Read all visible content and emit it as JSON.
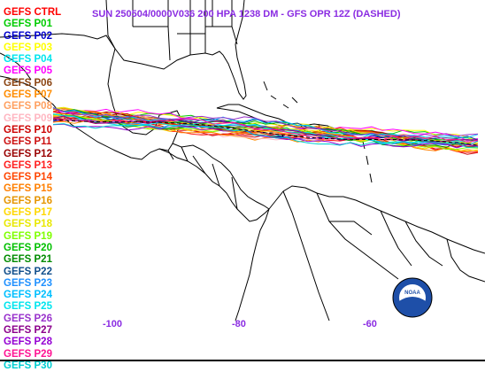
{
  "title": "SUN 250504/0000V036  200 HPA 1238 DM - GFS OPR 12Z (DASHED)",
  "legend": [
    {
      "label": "GEFS CTRL",
      "color": "#ff0000"
    },
    {
      "label": "GEFS P01",
      "color": "#00cc00"
    },
    {
      "label": "GEFS P02",
      "color": "#0000cc"
    },
    {
      "label": "GEFS P03",
      "color": "#ffff00"
    },
    {
      "label": "GEFS P04",
      "color": "#00e5ee"
    },
    {
      "label": "GEFS P05",
      "color": "#ff00ff"
    },
    {
      "label": "GEFS P06",
      "color": "#8b4513"
    },
    {
      "label": "GEFS P07",
      "color": "#ff8c00"
    },
    {
      "label": "GEFS P08",
      "color": "#ffa060"
    },
    {
      "label": "GEFS P09",
      "color": "#ffb6c1"
    },
    {
      "label": "GEFS P10",
      "color": "#cc0000"
    },
    {
      "label": "GEFS P11",
      "color": "#cc1010"
    },
    {
      "label": "GEFS P12",
      "color": "#990000"
    },
    {
      "label": "GEFS P13",
      "color": "#ff2020"
    },
    {
      "label": "GEFS P14",
      "color": "#ff4500"
    },
    {
      "label": "GEFS P15",
      "color": "#ff7f00"
    },
    {
      "label": "GEFS P16",
      "color": "#e59400"
    },
    {
      "label": "GEFS P17",
      "color": "#ffd700"
    },
    {
      "label": "GEFS P18",
      "color": "#e8e800"
    },
    {
      "label": "GEFS P19",
      "color": "#7fff00"
    },
    {
      "label": "GEFS P20",
      "color": "#00c000"
    },
    {
      "label": "GEFS P21",
      "color": "#008b00"
    },
    {
      "label": "GEFS P22",
      "color": "#104e8b"
    },
    {
      "label": "GEFS P23",
      "color": "#1e90ff"
    },
    {
      "label": "GEFS P24",
      "color": "#00bfff"
    },
    {
      "label": "GEFS P25",
      "color": "#00e5ee"
    },
    {
      "label": "GEFS P26",
      "color": "#9932cc"
    },
    {
      "label": "GEFS P27",
      "color": "#8b008b"
    },
    {
      "label": "GEFS P28",
      "color": "#9400d3"
    },
    {
      "label": "GEFS P29",
      "color": "#ff1493"
    },
    {
      "label": "GEFS P30",
      "color": "#00ced1"
    }
  ],
  "longitude_labels": [
    "-100",
    "-80",
    "-60"
  ],
  "logo_text": "NOAA",
  "colors": {
    "title": "#8a2be2",
    "coastline": "#000000",
    "background": "#ffffff"
  }
}
